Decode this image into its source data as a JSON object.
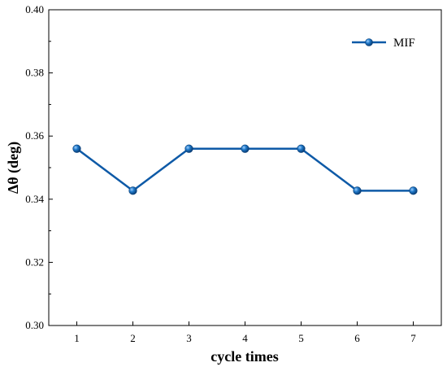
{
  "chart_data": {
    "type": "line",
    "title": "",
    "xlabel": "cycle times",
    "ylabel": "Δθ  (deg)",
    "x": [
      1,
      2,
      3,
      4,
      5,
      6,
      7
    ],
    "xticks": [
      "1",
      "2",
      "3",
      "4",
      "5",
      "6",
      "7"
    ],
    "xlim": [
      0.5,
      7.5
    ],
    "ylim": [
      0.3,
      0.4
    ],
    "yticks": [
      "0.30",
      "0.32",
      "0.34",
      "0.36",
      "0.38",
      "0.40"
    ],
    "series": [
      {
        "name": "MIF",
        "values": [
          0.356,
          0.3427,
          0.356,
          0.356,
          0.356,
          0.3427,
          0.3427
        ],
        "color": "#0e5aa7"
      }
    ],
    "grid": false,
    "legend_position": "top-right",
    "marker": "sphere"
  }
}
